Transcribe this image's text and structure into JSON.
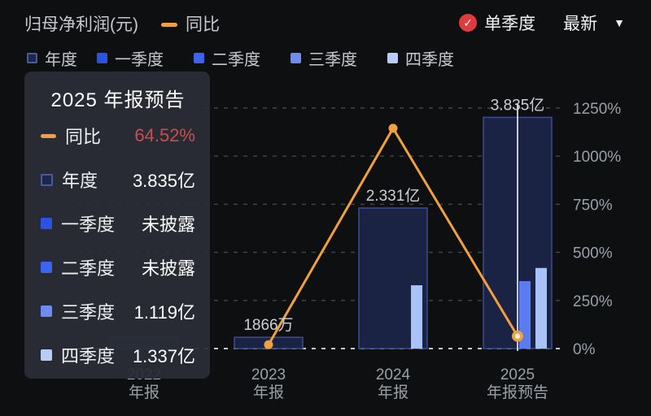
{
  "header": {
    "title": "归母净利润(元)",
    "yoy_legend_label": "同比",
    "quarter_mode_label": "单季度",
    "latest_label": "最新",
    "check_icon": "✓",
    "caret_icon": "▼"
  },
  "legend": {
    "items": [
      {
        "label": "年度",
        "marker": "square-outline",
        "fill": "#1d2749",
        "border": "#4a5aa0"
      },
      {
        "label": "一季度",
        "marker": "square",
        "fill": "#2a53e6"
      },
      {
        "label": "二季度",
        "marker": "square",
        "fill": "#3e63ee"
      },
      {
        "label": "三季度",
        "marker": "square",
        "fill": "#6c8cf2"
      },
      {
        "label": "四季度",
        "marker": "square",
        "fill": "#b9cbf8"
      }
    ]
  },
  "tooltip": {
    "title": "2025 年报预告",
    "rows": [
      {
        "label": "同比",
        "value": "64.52%",
        "marker": "dash",
        "color": "#f0a03c",
        "value_color": "#c94f4f"
      },
      {
        "label": "年度",
        "value": "3.835亿",
        "marker": "square-outline",
        "color": "#1d2749",
        "border": "#4a5aa0"
      },
      {
        "label": "一季度",
        "value": "未披露",
        "marker": "square",
        "color": "#2a53e6"
      },
      {
        "label": "二季度",
        "value": "未披露",
        "marker": "square",
        "color": "#3e63ee"
      },
      {
        "label": "三季度",
        "value": "1.119亿",
        "marker": "square",
        "color": "#6c8cf2"
      },
      {
        "label": "四季度",
        "value": "1.337亿",
        "marker": "square",
        "color": "#b9cbf8"
      }
    ]
  },
  "chart_data": {
    "type": "bar",
    "subtype": "combo bar + line overlay, dual axis",
    "title": "归母净利润(元) 与 同比",
    "categories": [
      "2022 年报",
      "2023 年报",
      "2024 年报",
      "2025 年报预告"
    ],
    "x_tick_lines": [
      [
        "2022",
        "年报"
      ],
      [
        "2023",
        "年报"
      ],
      [
        "2024",
        "年报"
      ],
      [
        "2025",
        "年报预告"
      ]
    ],
    "bar_series": [
      {
        "name": "年度",
        "unit": "亿元",
        "values_yi": [
          0.19,
          0.1866,
          2.331,
          3.835
        ],
        "labels": [
          "",
          "1866万",
          "2.331亿",
          "3.835亿"
        ],
        "hidden_behind_tooltip": [
          true,
          false,
          false,
          false
        ]
      },
      {
        "name": "三季度",
        "unit": "亿元",
        "values_yi": [
          null,
          null,
          null,
          1.119
        ],
        "labels": [
          "",
          "",
          "",
          ""
        ]
      },
      {
        "name": "四季度",
        "unit": "亿元",
        "values_yi": [
          null,
          null,
          1.05,
          1.337
        ],
        "labels": [
          "",
          "",
          "",
          ""
        ]
      }
    ],
    "line_series": {
      "name": "同比",
      "unit": "%",
      "values_pct": [
        null,
        20,
        1145,
        64.52
      ],
      "labeled": [
        false,
        false,
        false,
        true
      ]
    },
    "right_axis": {
      "ticks": [
        "0%",
        "250%",
        "500%",
        "750%",
        "1000%",
        "1250%"
      ],
      "range_pct": [
        0,
        1250
      ]
    },
    "left_axis": {
      "visible": false
    },
    "grid": "horizontal dashed",
    "highlight_index": 3,
    "crosshair": true,
    "colors": {
      "background": "#0e0f11",
      "line": "#f0a03c",
      "year_fill": "#1b2345",
      "year_border": "#3c4c92",
      "三季度": "#5b7cf0",
      "四季度": "#a9c2f7",
      "axis_text": "#9aa0a8",
      "bar_label_text": "#ccd0d6",
      "crosshair": "#d8dce2"
    }
  }
}
